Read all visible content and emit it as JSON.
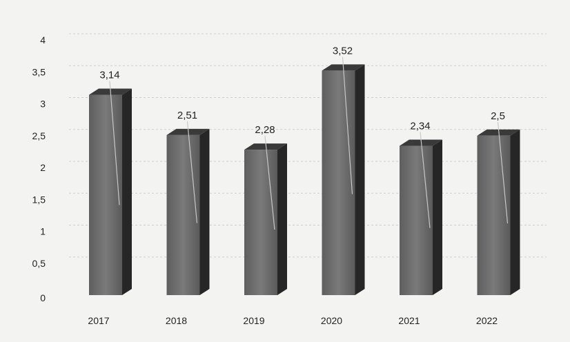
{
  "chart_data": {
    "type": "bar",
    "style": "3d-column",
    "categories": [
      "2017",
      "2018",
      "2019",
      "2020",
      "2021",
      "2022"
    ],
    "values": [
      3.14,
      2.51,
      2.28,
      3.52,
      2.34,
      2.5
    ],
    "value_labels": [
      "3,14",
      "2,51",
      "2,28",
      "3,52",
      "2,34",
      "2,5"
    ],
    "y_ticks": [
      0,
      0.5,
      1,
      1.5,
      2,
      2.5,
      3,
      3.5,
      4
    ],
    "y_tick_labels": [
      "0",
      "0,5",
      "1",
      "1,5",
      "2",
      "2,5",
      "3",
      "3,5",
      "4"
    ],
    "ylim": [
      0,
      4
    ],
    "grid": true,
    "legend": false,
    "title": "",
    "xlabel": "",
    "ylabel": ""
  },
  "colors": {
    "background": "#f3f3f1",
    "bar_front": "#6d6d6d",
    "bar_side": "#262626",
    "bar_top": "#3a3a3a",
    "grid": "#cfcfcf",
    "text": "#222222"
  }
}
